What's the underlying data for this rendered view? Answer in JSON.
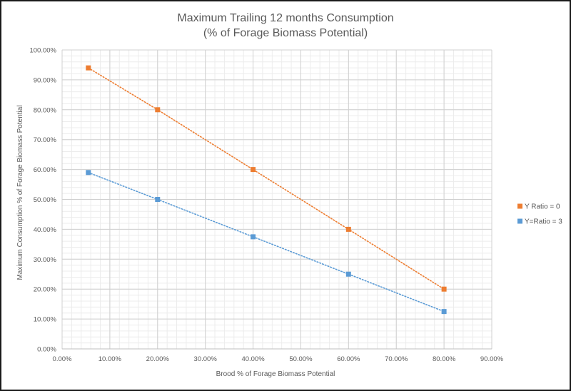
{
  "chart_data": {
    "type": "line",
    "title": [
      "Maximum Trailing 12 months Consumption",
      "(% of Forage Biomass Potential)"
    ],
    "xlabel": "Brood % of Forage Biomass Potential",
    "ylabel": "Maximum Consumption % of Forage Biomass Potential",
    "xlim": [
      0,
      0.9
    ],
    "ylim": [
      0,
      1.0
    ],
    "xticks": [
      0,
      0.1,
      0.2,
      0.3,
      0.4,
      0.5,
      0.6,
      0.7,
      0.8,
      0.9
    ],
    "yticks": [
      0,
      0.1,
      0.2,
      0.3,
      0.4,
      0.5,
      0.6,
      0.7,
      0.8,
      0.9,
      1.0
    ],
    "xtick_labels": [
      "0.00%",
      "10.00%",
      "20.00%",
      "30.00%",
      "40.00%",
      "50.00%",
      "60.00%",
      "70.00%",
      "80.00%",
      "90.00%"
    ],
    "ytick_labels": [
      "0.00%",
      "10.00%",
      "20.00%",
      "30.00%",
      "40.00%",
      "50.00%",
      "60.00%",
      "70.00%",
      "80.00%",
      "90.00%",
      "100.00%"
    ],
    "grid": true,
    "minor_grid": true,
    "line_style": "dotted",
    "marker": "square",
    "legend_position": "right",
    "series": [
      {
        "name": "Y Ratio = 0",
        "color": "#ED7D31",
        "x": [
          0.055,
          0.2,
          0.4,
          0.6,
          0.8
        ],
        "y": [
          0.94,
          0.8,
          0.6,
          0.4,
          0.2
        ]
      },
      {
        "name": "Y=Ratio = 3",
        "color": "#5B9BD5",
        "x": [
          0.055,
          0.2,
          0.4,
          0.6,
          0.8
        ],
        "y": [
          0.59,
          0.5,
          0.375,
          0.25,
          0.125
        ]
      }
    ]
  }
}
